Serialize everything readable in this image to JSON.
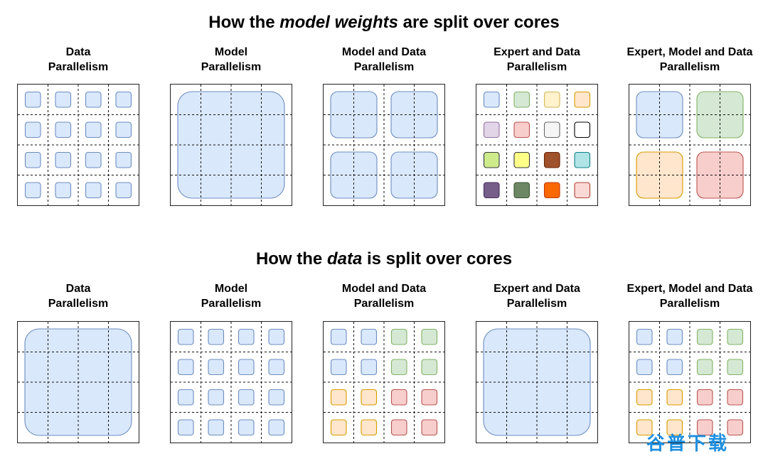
{
  "sections": [
    {
      "title_parts": [
        "How the ",
        "model weights",
        " are split over cores"
      ],
      "panels": [
        {
          "label": [
            "Data",
            "Parallelism"
          ],
          "pattern": "small",
          "colors": "uniform_blue"
        },
        {
          "label": [
            "Model",
            "Parallelism"
          ],
          "pattern": "full",
          "colors": "uniform_blue"
        },
        {
          "label": [
            "Model and Data",
            "Parallelism"
          ],
          "pattern": "quad",
          "colors": "uniform_blue"
        },
        {
          "label": [
            "Expert and Data",
            "Parallelism"
          ],
          "pattern": "small",
          "colors": "experts16"
        },
        {
          "label": [
            "Expert, Model and Data",
            "Parallelism"
          ],
          "pattern": "quad",
          "colors": "experts4"
        }
      ]
    },
    {
      "title_parts": [
        "How the ",
        "data",
        " is split over cores"
      ],
      "panels": [
        {
          "label": [
            "Data",
            "Parallelism"
          ],
          "pattern": "full",
          "colors": "uniform_blue"
        },
        {
          "label": [
            "Model",
            "Parallelism"
          ],
          "pattern": "small",
          "colors": "uniform_blue"
        },
        {
          "label": [
            "Model and Data",
            "Parallelism"
          ],
          "pattern": "small",
          "colors": "quadrants"
        },
        {
          "label": [
            "Expert and Data",
            "Parallelism"
          ],
          "pattern": "full",
          "colors": "uniform_blue"
        },
        {
          "label": [
            "Expert, Model and Data",
            "Parallelism"
          ],
          "pattern": "small",
          "colors": "quadrants"
        }
      ]
    }
  ],
  "palette": {
    "blue": {
      "fill": "#dae8fc",
      "stroke": "#6c8ebf"
    },
    "green": {
      "fill": "#d5e8d4",
      "stroke": "#82b366"
    },
    "orange": {
      "fill": "#ffe6cc",
      "stroke": "#d79b00"
    },
    "red": {
      "fill": "#f8cecc",
      "stroke": "#b85450"
    },
    "experts16": [
      {
        "fill": "#dae8fc",
        "stroke": "#6c8ebf"
      },
      {
        "fill": "#d5e8d4",
        "stroke": "#82b366"
      },
      {
        "fill": "#fff2cc",
        "stroke": "#d6b656"
      },
      {
        "fill": "#ffe6cc",
        "stroke": "#d79b00"
      },
      {
        "fill": "#e1d5e7",
        "stroke": "#9673a6"
      },
      {
        "fill": "#f8cecc",
        "stroke": "#b85450"
      },
      {
        "fill": "#f5f5f5",
        "stroke": "#666666"
      },
      {
        "fill": "#ffffff",
        "stroke": "#000000"
      },
      {
        "fill": "#cdeb8b",
        "stroke": "#36393d"
      },
      {
        "fill": "#ffff88",
        "stroke": "#36393d"
      },
      {
        "fill": "#a0522d",
        "stroke": "#6d1f00"
      },
      {
        "fill": "#b0e3e6",
        "stroke": "#0e8088"
      },
      {
        "fill": "#76608a",
        "stroke": "#432d57"
      },
      {
        "fill": "#6d8764",
        "stroke": "#3a5431"
      },
      {
        "fill": "#fa6800",
        "stroke": "#c73500"
      },
      {
        "fill": "#fad9d5",
        "stroke": "#ae4132"
      }
    ]
  },
  "watermark": "谷普下载"
}
